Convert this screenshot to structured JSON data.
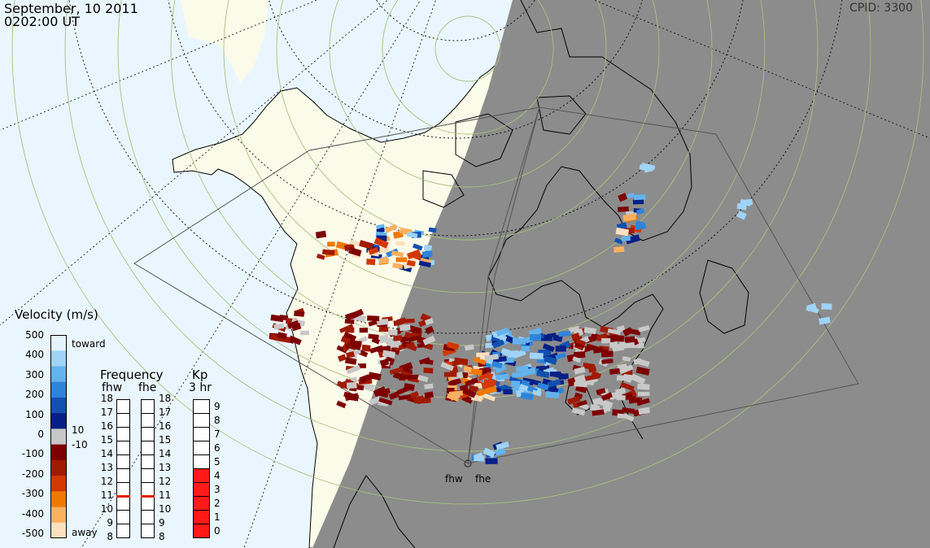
{
  "header": {
    "date": "September, 10 2011",
    "time": "0202:00 UT",
    "cpid": "CPID: 3300"
  },
  "velocity_scale": {
    "title": "Velocity (m/s)",
    "ticks": [
      "500",
      "400",
      "300",
      "200",
      "100",
      "0",
      "-100",
      "-200",
      "-300",
      "-400",
      "-500"
    ],
    "toward_label": "toward",
    "away_label": "away",
    "pos_threshold": "10",
    "neg_threshold": "-10",
    "colors": [
      "#e4f3ff",
      "#9fd3f7",
      "#63b3ee",
      "#2e84d8",
      "#1250b0",
      "#051f86",
      "#c8c8c8",
      "#7d0000",
      "#a01a00",
      "#d23800",
      "#f07800",
      "#fbb060",
      "#fde0c0"
    ]
  },
  "frequency": {
    "title": "Frequency",
    "radars": [
      "fhw",
      "fhe"
    ],
    "ticks": [
      "18",
      "17",
      "16",
      "15",
      "14",
      "13",
      "12",
      "11",
      "10",
      "9",
      "8"
    ],
    "fhw_value": 11,
    "fhe_value": 11,
    "marker_color": "#dd2200"
  },
  "kp": {
    "title": "Kp",
    "subtitle": "3 hr",
    "ticks": [
      "9",
      "8",
      "7",
      "6",
      "5",
      "4",
      "3",
      "2",
      "1",
      "0"
    ],
    "value": 5,
    "fill_color": "#ff1a1a"
  },
  "map": {
    "night_color": "#8c8c8c",
    "ocean_color": "#eaf6ff",
    "land_color": "#fbfbe9",
    "radars": [
      {
        "name": "fhw"
      },
      {
        "name": "fhe"
      }
    ]
  }
}
